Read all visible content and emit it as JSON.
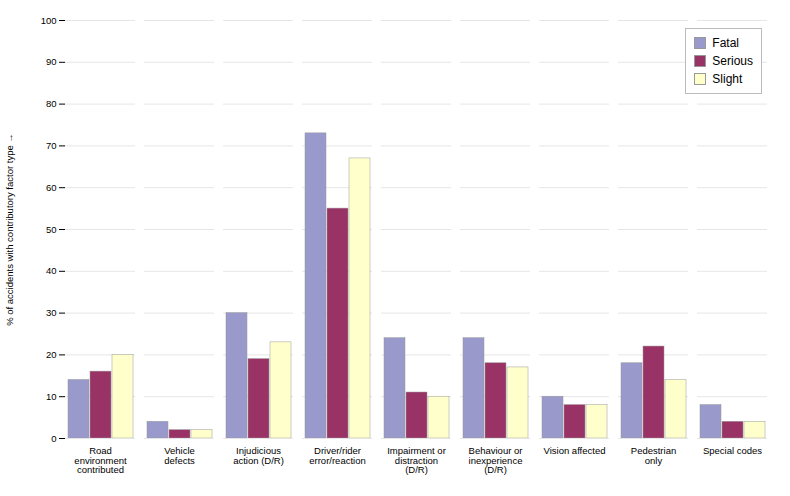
{
  "chart_data": {
    "type": "bar",
    "categories": [
      "Road\nenvironment\ncontributed",
      "Vehicle\ndefects",
      "Injudicious\naction (D/R)",
      "Driver/rider\nerror/reaction",
      "Impairment or\ndistraction\n(D/R)",
      "Behaviour or\ninexperience\n(D/R)",
      "Vision affected",
      "Pedestrian\nonly",
      "Special codes"
    ],
    "series": [
      {
        "name": "Fatal",
        "color": "#9999cc",
        "values": [
          14,
          4,
          30,
          73,
          24,
          24,
          10,
          18,
          8
        ]
      },
      {
        "name": "Serious",
        "color": "#993366",
        "values": [
          16,
          2,
          19,
          55,
          11,
          18,
          8,
          22,
          4
        ]
      },
      {
        "name": "Slight",
        "color": "#ffffcc",
        "values": [
          20,
          2,
          23,
          67,
          10,
          17,
          8,
          14,
          4
        ]
      }
    ],
    "ylabel": "% of accidents with contributory factor type",
    "ylim": [
      0,
      100
    ],
    "yticks": [
      0,
      10,
      20,
      30,
      40,
      50,
      60,
      70,
      80,
      90,
      100
    ],
    "grid": true,
    "legend": "upper right"
  }
}
